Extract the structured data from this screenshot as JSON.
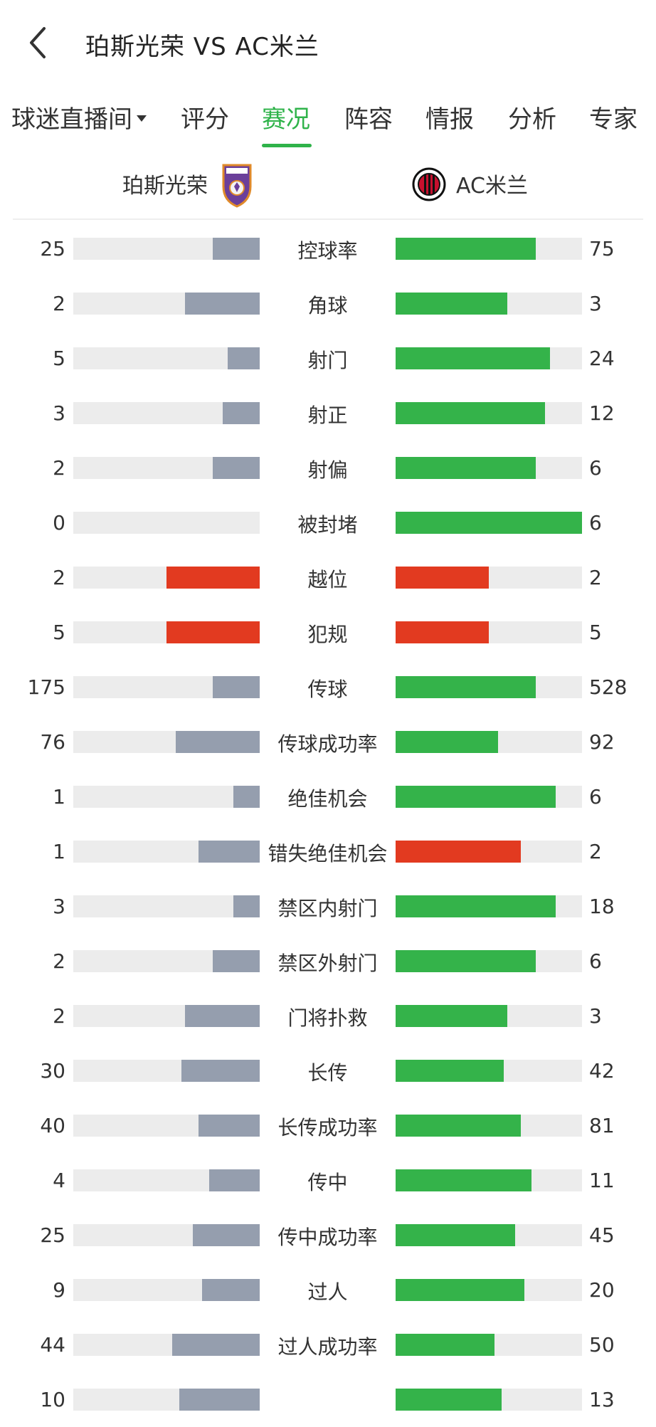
{
  "header": {
    "title": "珀斯光荣 VS AC米兰"
  },
  "tabs": [
    {
      "label": "球迷直播间",
      "dropdown": true
    },
    {
      "label": "评分"
    },
    {
      "label": "赛况",
      "active": true
    },
    {
      "label": "阵容"
    },
    {
      "label": "情报"
    },
    {
      "label": "分析"
    },
    {
      "label": "专家"
    }
  ],
  "teams": {
    "home": {
      "name": "珀斯光荣"
    },
    "away": {
      "name": "AC米兰"
    }
  },
  "colors": {
    "accent": "#2fb34a",
    "green_bar": "#34b34a",
    "gray_bar": "#959eae",
    "red_bar": "#e23a20",
    "track": "#ececec"
  },
  "stats": [
    {
      "label": "控球率",
      "home": "25",
      "away": "75",
      "home_fill": 0.25,
      "away_fill": 0.75,
      "home_color": "gray",
      "away_color": "green"
    },
    {
      "label": "角球",
      "home": "2",
      "away": "3",
      "home_fill": 0.4,
      "away_fill": 0.6,
      "home_color": "gray",
      "away_color": "green"
    },
    {
      "label": "射门",
      "home": "5",
      "away": "24",
      "home_fill": 0.17,
      "away_fill": 0.83,
      "home_color": "gray",
      "away_color": "green"
    },
    {
      "label": "射正",
      "home": "3",
      "away": "12",
      "home_fill": 0.2,
      "away_fill": 0.8,
      "home_color": "gray",
      "away_color": "green"
    },
    {
      "label": "射偏",
      "home": "2",
      "away": "6",
      "home_fill": 0.25,
      "away_fill": 0.75,
      "home_color": "gray",
      "away_color": "green"
    },
    {
      "label": "被封堵",
      "home": "0",
      "away": "6",
      "home_fill": 0.0,
      "away_fill": 1.0,
      "home_color": "gray",
      "away_color": "green"
    },
    {
      "label": "越位",
      "home": "2",
      "away": "2",
      "home_fill": 0.5,
      "away_fill": 0.5,
      "home_color": "red",
      "away_color": "red"
    },
    {
      "label": "犯规",
      "home": "5",
      "away": "5",
      "home_fill": 0.5,
      "away_fill": 0.5,
      "home_color": "red",
      "away_color": "red"
    },
    {
      "label": "传球",
      "home": "175",
      "away": "528",
      "home_fill": 0.25,
      "away_fill": 0.75,
      "home_color": "gray",
      "away_color": "green"
    },
    {
      "label": "传球成功率",
      "home": "76",
      "away": "92",
      "home_fill": 0.45,
      "away_fill": 0.55,
      "home_color": "gray",
      "away_color": "green"
    },
    {
      "label": "绝佳机会",
      "home": "1",
      "away": "6",
      "home_fill": 0.14,
      "away_fill": 0.86,
      "home_color": "gray",
      "away_color": "green"
    },
    {
      "label": "错失绝佳机会",
      "home": "1",
      "away": "2",
      "home_fill": 0.33,
      "away_fill": 0.67,
      "home_color": "gray",
      "away_color": "red"
    },
    {
      "label": "禁区内射门",
      "home": "3",
      "away": "18",
      "home_fill": 0.14,
      "away_fill": 0.86,
      "home_color": "gray",
      "away_color": "green"
    },
    {
      "label": "禁区外射门",
      "home": "2",
      "away": "6",
      "home_fill": 0.25,
      "away_fill": 0.75,
      "home_color": "gray",
      "away_color": "green"
    },
    {
      "label": "门将扑救",
      "home": "2",
      "away": "3",
      "home_fill": 0.4,
      "away_fill": 0.6,
      "home_color": "gray",
      "away_color": "green"
    },
    {
      "label": "长传",
      "home": "30",
      "away": "42",
      "home_fill": 0.42,
      "away_fill": 0.58,
      "home_color": "gray",
      "away_color": "green"
    },
    {
      "label": "长传成功率",
      "home": "40",
      "away": "81",
      "home_fill": 0.33,
      "away_fill": 0.67,
      "home_color": "gray",
      "away_color": "green"
    },
    {
      "label": "传中",
      "home": "4",
      "away": "11",
      "home_fill": 0.27,
      "away_fill": 0.73,
      "home_color": "gray",
      "away_color": "green"
    },
    {
      "label": "传中成功率",
      "home": "25",
      "away": "45",
      "home_fill": 0.36,
      "away_fill": 0.64,
      "home_color": "gray",
      "away_color": "green"
    },
    {
      "label": "过人",
      "home": "9",
      "away": "20",
      "home_fill": 0.31,
      "away_fill": 0.69,
      "home_color": "gray",
      "away_color": "green"
    },
    {
      "label": "过人成功率",
      "home": "44",
      "away": "50",
      "home_fill": 0.47,
      "away_fill": 0.53,
      "home_color": "gray",
      "away_color": "green"
    },
    {
      "label": "",
      "home": "10",
      "away": "13",
      "home_fill": 0.43,
      "away_fill": 0.57,
      "home_color": "gray",
      "away_color": "green"
    }
  ]
}
